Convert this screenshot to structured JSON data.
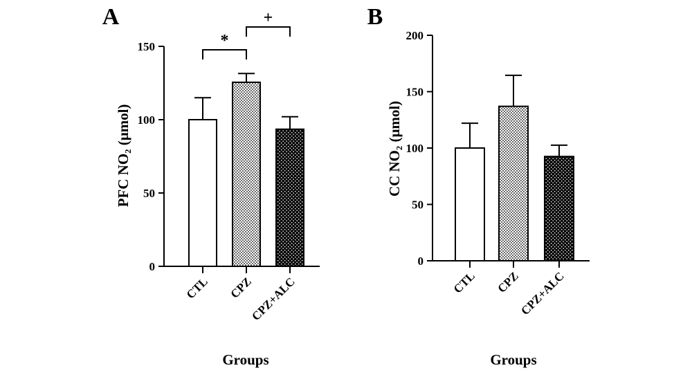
{
  "chart_data": [
    {
      "panel": "A",
      "type": "bar",
      "categories": [
        "CTL",
        "CPZ",
        "CPZ+ALC"
      ],
      "values": [
        100,
        125.5,
        93.5
      ],
      "errors": [
        15,
        6,
        8.5
      ],
      "fills": [
        "open",
        "checker",
        "dotted-dark"
      ],
      "ylabel": "PFC NO₂ (μmol)",
      "xlabel": "Groups",
      "ylim": [
        0,
        150
      ],
      "yticks": [
        0,
        50,
        100,
        150
      ],
      "annotations": [
        {
          "label": "*",
          "from": "CTL",
          "to": "CPZ"
        },
        {
          "label": "+",
          "from": "CPZ",
          "to": "CPZ+ALC"
        }
      ]
    },
    {
      "panel": "B",
      "type": "bar",
      "categories": [
        "CTL",
        "CPZ",
        "CPZ+ALC"
      ],
      "values": [
        100,
        137,
        92.5
      ],
      "errors": [
        22,
        27.5,
        10
      ],
      "fills": [
        "open",
        "checker",
        "dotted-dark"
      ],
      "ylabel": "CC NO₂ (μmol)",
      "xlabel": "Groups",
      "ylim": [
        0,
        200
      ],
      "yticks": [
        0,
        50,
        100,
        150,
        200
      ],
      "annotations": []
    }
  ]
}
